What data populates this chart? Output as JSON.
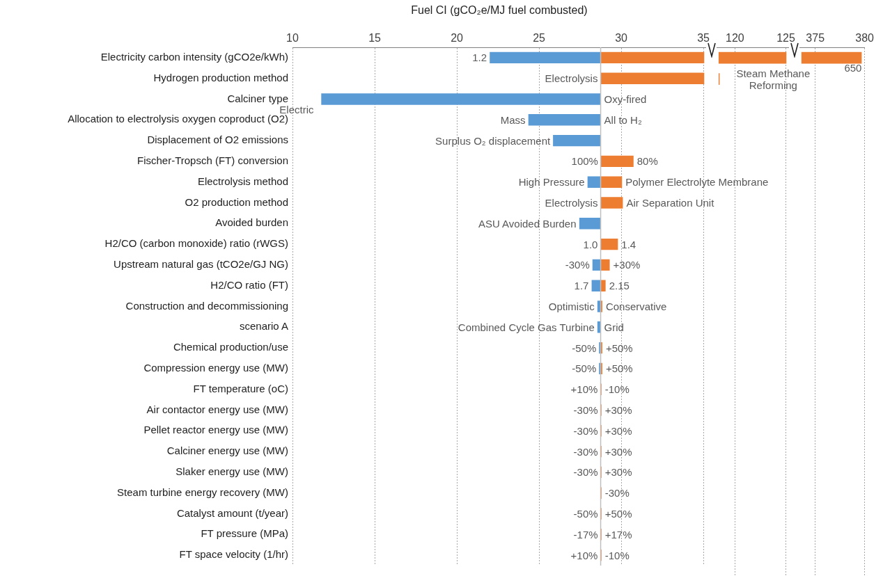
{
  "chart_data": [
    {
      "type": "bar",
      "orientation": "horizontal",
      "xlabel": "Fuel CI (gCO₂e/MJ fuel combusted)",
      "categories": [
        "Electricity carbon intensity (gCO2e/kWh)",
        "Hydrogen production method",
        "Calciner type",
        "Allocation to electrolysis oxygen coproduct (O2)",
        "Displacement of O2 emissions",
        "Fischer-Tropsch (FT) conversion",
        "Electrolysis method",
        "O2 production method",
        "Avoided burden",
        "H2/CO (carbon monoxide) ratio (rWGS)",
        "Upstream natural gas (tCO2e/GJ NG)",
        "H2/CO ratio (FT)",
        "Construction and decommissioning",
        "scenario A",
        "Chemical production/use",
        "Compression energy use (MW)",
        "FT temperature (oC)",
        "Air contactor energy use (MW)",
        "Pellet reactor energy use (MW)",
        "Calciner energy use (MW)",
        "Slaker energy use (MW)",
        "Steam turbine energy recovery (MW)",
        "Catalyst amount (t/year)",
        "FT pressure (MPa)",
        "FT space velocity (1/hr)"
      ],
      "series": [
        {
          "color": "#5b9bd5",
          "base": [
            28.75,
            null,
            28.75,
            28.75,
            28.75,
            null,
            28.75,
            null,
            28.75,
            null,
            28.75,
            28.75,
            28.75,
            28.75,
            28.75,
            28.75,
            null,
            null,
            null,
            null,
            null,
            null,
            null,
            null,
            null
          ],
          "values": [
            -6.75,
            null,
            -17,
            -4.4,
            -2.9,
            null,
            -0.8,
            null,
            -1.3,
            null,
            -0.5,
            -0.55,
            -0.2,
            -0.2,
            -0.1,
            -0.1,
            null,
            null,
            null,
            null,
            null,
            null,
            null,
            null,
            null
          ]
        },
        {
          "color": "#ed7d31",
          "base": [
            28.75,
            28.75,
            null,
            null,
            null,
            28.75,
            28.75,
            28.75,
            null,
            28.75,
            28.75,
            28.75,
            28.75,
            null,
            28.75,
            28.75,
            28.75,
            28.75,
            28.75,
            28.75,
            28.75,
            28.75,
            28.75,
            28.75,
            28.75
          ],
          "values": [
            6.3,
            6.3,
            null,
            null,
            null,
            2.0,
            1.3,
            1.35,
            null,
            1.05,
            0.55,
            0.3,
            0.1,
            null,
            0.1,
            0.1,
            0.05,
            0.05,
            0.05,
            0.05,
            0.05,
            0.05,
            0.05,
            0.05,
            0.05
          ]
        }
      ],
      "xlim": [
        10,
        35.16
      ],
      "xticks": [
        10,
        15,
        20,
        25,
        30,
        35
      ],
      "grid": "x",
      "ref_lines": [
        {
          "axis": "x",
          "value": 28.75,
          "color": "#bfbfbf"
        }
      ],
      "annotations": [
        {
          "text": "1.2",
          "x": 22.0,
          "y": "Electricity carbon intensity (gCO2e/kWh)"
        },
        {
          "text": "Electrolysis",
          "x": 28.75,
          "y": "Hydrogen production method"
        },
        {
          "text": "Electric",
          "x": 11.75,
          "y": "Calciner type"
        },
        {
          "text": "Oxy-fired",
          "x": 28.75,
          "y": "Calciner type"
        },
        {
          "text": "Mass",
          "x": 24.35,
          "y": "Allocation to electrolysis oxygen coproduct (O2)"
        },
        {
          "text": "All to H₂",
          "x": 28.75,
          "y": "Allocation to electrolysis oxygen coproduct (O2)"
        },
        {
          "text": "Surplus O₂ displacement",
          "x": 25.85,
          "y": "Displacement of O2 emissions"
        },
        {
          "text": "100%",
          "x": 28.75,
          "y": "Fischer-Tropsch (FT) conversion"
        },
        {
          "text": "80%",
          "x": 30.75,
          "y": "Fischer-Tropsch (FT) conversion"
        },
        {
          "text": "High Pressure",
          "x": 27.95,
          "y": "Electrolysis method"
        },
        {
          "text": "Polymer Electrolyte Membrane",
          "x": 30.05,
          "y": "Electrolysis method"
        },
        {
          "text": "Electrolysis",
          "x": 28.75,
          "y": "O2 production method"
        },
        {
          "text": "Air Separation Unit",
          "x": 30.1,
          "y": "O2 production method"
        },
        {
          "text": "ASU Avoided Burden",
          "x": 27.45,
          "y": "Avoided burden"
        },
        {
          "text": "1.0",
          "x": 28.75,
          "y": "H2/CO (carbon monoxide) ratio (rWGS)"
        },
        {
          "text": "1.4",
          "x": 29.8,
          "y": "H2/CO (carbon monoxide) ratio (rWGS)"
        },
        {
          "text": "-30%",
          "x": 28.25,
          "y": "Upstream natural gas (tCO2e/GJ NG)"
        },
        {
          "text": "+30%",
          "x": 29.3,
          "y": "Upstream natural gas (tCO2e/GJ NG)"
        },
        {
          "text": "1.7",
          "x": 28.2,
          "y": "H2/CO ratio (FT)"
        },
        {
          "text": "2.15",
          "x": 29.05,
          "y": "H2/CO ratio (FT)"
        },
        {
          "text": "Optimistic",
          "x": 28.55,
          "y": "Construction and decommissioning"
        },
        {
          "text": "Conservative",
          "x": 28.85,
          "y": "Construction and decommissioning"
        },
        {
          "text": "Combined Cycle Gas Turbine",
          "x": 28.55,
          "y": "scenario A"
        },
        {
          "text": "Grid",
          "x": 28.75,
          "y": "scenario A"
        },
        {
          "text": "-50%",
          "x": 28.65,
          "y": "Chemical production/use"
        },
        {
          "text": "+50%",
          "x": 28.85,
          "y": "Chemical production/use"
        },
        {
          "text": "-50%",
          "x": 28.65,
          "y": "Compression energy use (MW)"
        },
        {
          "text": "+50%",
          "x": 28.85,
          "y": "Compression energy use (MW)"
        },
        {
          "text": "+10%",
          "x": 28.75,
          "y": "FT temperature (oC)"
        },
        {
          "text": "-10%",
          "x": 28.8,
          "y": "FT temperature (oC)"
        },
        {
          "text": "-30%",
          "x": 28.75,
          "y": "Air contactor energy use (MW)"
        },
        {
          "text": "+30%",
          "x": 28.8,
          "y": "Air contactor energy use (MW)"
        },
        {
          "text": "-30%",
          "x": 28.75,
          "y": "Pellet reactor energy use (MW)"
        },
        {
          "text": "+30%",
          "x": 28.8,
          "y": "Pellet reactor energy use (MW)"
        },
        {
          "text": "-30%",
          "x": 28.75,
          "y": "Calciner energy use (MW)"
        },
        {
          "text": "+30%",
          "x": 28.8,
          "y": "Calciner energy use (MW)"
        },
        {
          "text": "-30%",
          "x": 28.75,
          "y": "Slaker energy use (MW)"
        },
        {
          "text": "+30%",
          "x": 28.8,
          "y": "Slaker energy use (MW)"
        },
        {
          "text": "-30%",
          "x": 28.8,
          "y": "Steam turbine energy recovery (MW)"
        },
        {
          "text": "-50%",
          "x": 28.75,
          "y": "Catalyst amount (t/year)"
        },
        {
          "text": "+50%",
          "x": 28.8,
          "y": "Catalyst amount (t/year)"
        },
        {
          "text": "-17%",
          "x": 28.75,
          "y": "FT pressure (MPa)"
        },
        {
          "text": "+17%",
          "x": 28.8,
          "y": "FT pressure (MPa)"
        },
        {
          "text": "+10%",
          "x": 28.75,
          "y": "FT space velocity (1/hr)"
        },
        {
          "text": "-10%",
          "x": 28.8,
          "y": "FT space velocity (1/hr)"
        }
      ]
    },
    {
      "type": "bar",
      "orientation": "horizontal",
      "tick_labels": "x",
      "categories": [
        "Electricity carbon intensity (gCO2e/kWh)",
        "Hydrogen production method",
        "Calciner type",
        "Allocation to electrolysis oxygen coproduct (O2)",
        "Displacement of O2 emissions",
        "Fischer-Tropsch (FT) conversion",
        "Electrolysis method",
        "O2 production method",
        "Avoided burden",
        "H2/CO (carbon monoxide) ratio (rWGS)",
        "Upstream natural gas (tCO2e/GJ NG)",
        "H2/CO ratio (FT)",
        "Construction and decommissioning",
        "scenario A",
        "Chemical production/use",
        "Compression energy use (MW)",
        "FT temperature (oC)",
        "Air contactor energy use (MW)",
        "Pellet reactor energy use (MW)",
        "Calciner energy use (MW)",
        "Slaker energy use (MW)",
        "Steam turbine energy recovery (MW)",
        "Catalyst amount (t/year)",
        "FT pressure (MPa)",
        "FT space velocity (1/hr)"
      ],
      "series": [
        {
          "color": "#ed7d31",
          "base": [
            118.4,
            118.4,
            null,
            null,
            null,
            null,
            null,
            null,
            null,
            null,
            null,
            null,
            null,
            null,
            null,
            null,
            null,
            null,
            null,
            null,
            null,
            null,
            null,
            null,
            null
          ],
          "values": [
            6.65,
            0.1,
            null,
            null,
            null,
            null,
            null,
            null,
            null,
            null,
            null,
            null,
            null,
            null,
            null,
            null,
            null,
            null,
            null,
            null,
            null,
            null,
            null,
            null,
            null
          ]
        }
      ],
      "xlim": [
        118.2,
        125.3
      ],
      "xticks": [
        120,
        125
      ],
      "grid": "x",
      "annotations": [
        {
          "text": "Steam Methane Reforming",
          "x": 118.5,
          "y": "Hydrogen production method"
        }
      ]
    },
    {
      "type": "bar",
      "orientation": "horizontal",
      "tick_labels": "x",
      "categories": [
        "Electricity carbon intensity (gCO2e/kWh)",
        "Hydrogen production method",
        "Calciner type",
        "Allocation to electrolysis oxygen coproduct (O2)",
        "Displacement of O2 emissions",
        "Fischer-Tropsch (FT) conversion",
        "Electrolysis method",
        "O2 production method",
        "Avoided burden",
        "H2/CO (carbon monoxide) ratio (rWGS)",
        "Upstream natural gas (tCO2e/GJ NG)",
        "H2/CO ratio (FT)",
        "Construction and decommissioning",
        "scenario A",
        "Chemical production/use",
        "Compression energy use (MW)",
        "FT temperature (oC)",
        "Air contactor energy use (MW)",
        "Pellet reactor energy use (MW)",
        "Calciner energy use (MW)",
        "Slaker energy use (MW)",
        "Steam turbine energy recovery (MW)",
        "Catalyst amount (t/year)",
        "FT pressure (MPa)",
        "FT space velocity (1/hr)"
      ],
      "series": [
        {
          "color": "#ed7d31",
          "base": [
            373.6,
            null,
            null,
            null,
            null,
            null,
            null,
            null,
            null,
            null,
            null,
            null,
            null,
            null,
            null,
            null,
            null,
            null,
            null,
            null,
            null,
            null,
            null,
            null,
            null
          ],
          "values": [
            6.1,
            null,
            null,
            null,
            null,
            null,
            null,
            null,
            null,
            null,
            null,
            null,
            null,
            null,
            null,
            null,
            null,
            null,
            null,
            null,
            null,
            null,
            null,
            null,
            null
          ]
        }
      ],
      "xlim": [
        373.4,
        380
      ],
      "xticks": [
        375,
        380
      ],
      "grid": "x",
      "annotations": [
        {
          "text": "650",
          "x": 379.7,
          "y": "Electricity carbon intensity (gCO2e/kWh)"
        }
      ]
    }
  ]
}
